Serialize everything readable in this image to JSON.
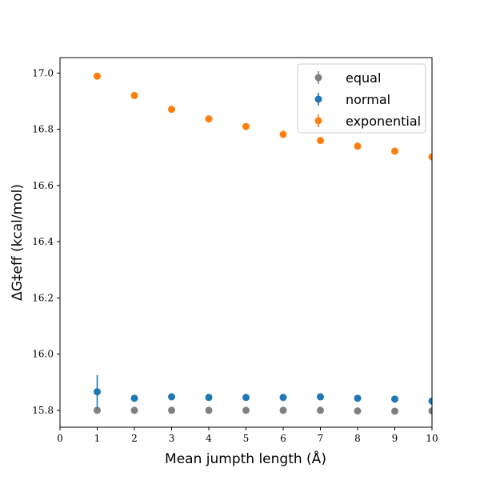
{
  "chart_data": {
    "type": "scatter",
    "title": "",
    "xlabel": "Mean jumpth length (Å)",
    "ylabel": "ΔG‡eff (kcal/mol)",
    "xlim": [
      0,
      10
    ],
    "ylim": [
      15.74,
      17.055
    ],
    "xticks": [
      "0",
      "1",
      "2",
      "3",
      "4",
      "5",
      "6",
      "7",
      "8",
      "9",
      "10"
    ],
    "yticks": [
      "15.8",
      "16.0",
      "16.2",
      "16.4",
      "16.6",
      "16.8",
      "17.0"
    ],
    "grid": false,
    "legend_position": "top-right",
    "x": [
      1,
      2,
      3,
      4,
      5,
      6,
      7,
      8,
      9,
      10
    ],
    "series": [
      {
        "name": "equal",
        "color": "#808080",
        "values": [
          15.8,
          15.8,
          15.8,
          15.8,
          15.8,
          15.8,
          15.8,
          15.798,
          15.797,
          15.798
        ],
        "errors": [
          0.005,
          0.003,
          0.003,
          0.003,
          0.003,
          0.003,
          0.003,
          0.003,
          0.003,
          0.003
        ]
      },
      {
        "name": "normal",
        "color": "#1f77b4",
        "values": [
          15.866,
          15.843,
          15.848,
          15.846,
          15.846,
          15.846,
          15.848,
          15.843,
          15.84,
          15.833
        ],
        "errors": [
          0.06,
          0.006,
          0.006,
          0.006,
          0.006,
          0.006,
          0.006,
          0.006,
          0.006,
          0.006
        ]
      },
      {
        "name": "exponential",
        "color": "#ff7f0e",
        "values": [
          16.989,
          16.92,
          16.871,
          16.837,
          16.81,
          16.782,
          16.76,
          16.74,
          16.722,
          16.702
        ],
        "errors": [
          0.004,
          0.004,
          0.004,
          0.004,
          0.004,
          0.004,
          0.004,
          0.004,
          0.004,
          0.004
        ]
      }
    ]
  }
}
